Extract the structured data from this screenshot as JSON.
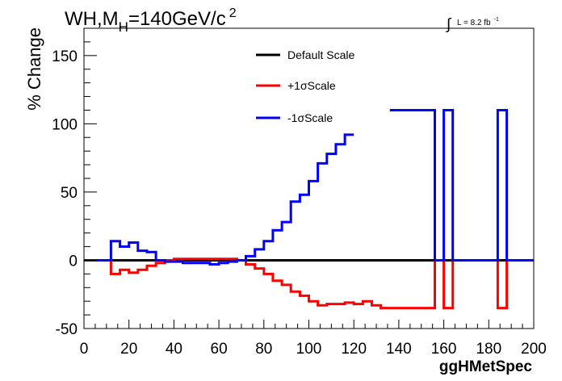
{
  "chart_data": {
    "type": "line",
    "title": "WH,M_H=140GeV/c^2",
    "title_parts": {
      "main": "WH,M",
      "sub": "H",
      "rest": "=140GeV/c",
      "sup": "2"
    },
    "lumi_label": {
      "symbol": "∫",
      "text": "L = 8.2 fb",
      "sup": "-1"
    },
    "xlabel": "ggHMetSpec",
    "ylabel": "% Change",
    "xlim": [
      0,
      200
    ],
    "ylim": [
      -50,
      170
    ],
    "x_ticks": [
      0,
      20,
      40,
      60,
      80,
      100,
      120,
      140,
      160,
      180,
      200
    ],
    "y_ticks": [
      -50,
      0,
      50,
      100,
      150
    ],
    "grid": false,
    "legend_position": "top-center",
    "step_edges": [
      0,
      4,
      8,
      12,
      16,
      20,
      24,
      28,
      32,
      36,
      40,
      44,
      48,
      52,
      56,
      60,
      64,
      68,
      72,
      76,
      80,
      84,
      88,
      92,
      96,
      100,
      104,
      108,
      112,
      116,
      120,
      124,
      128,
      132,
      136,
      140,
      144,
      148,
      152,
      156,
      160,
      164,
      168,
      172,
      176,
      180,
      184,
      188,
      192,
      196,
      200
    ],
    "series": [
      {
        "name": "Default Scale",
        "color": "#000000",
        "values": [
          0,
          0,
          0,
          0,
          0,
          0,
          0,
          0,
          0,
          0,
          0,
          0,
          0,
          0,
          0,
          0,
          0,
          0,
          0,
          0,
          0,
          0,
          0,
          0,
          0,
          0,
          0,
          0,
          0,
          0,
          0,
          0,
          0,
          0,
          0,
          0,
          0,
          0,
          0,
          0,
          0,
          0,
          0,
          0,
          0,
          0,
          0,
          0,
          0,
          0
        ]
      },
      {
        "name": "+1σScale",
        "color": "#ff0000",
        "values": [
          0,
          0,
          0,
          -10,
          -7,
          -9,
          -7,
          -4,
          -2,
          0,
          1,
          1,
          1,
          1,
          1,
          1,
          1,
          0,
          -3,
          -6,
          -10,
          -15,
          -18,
          -23,
          -26,
          -30,
          -33,
          -32,
          -32,
          -31,
          -32,
          -30,
          -33,
          -35,
          -35,
          -35,
          -35,
          -35,
          -35,
          0,
          -35,
          0,
          0,
          0,
          0,
          0,
          -35,
          0,
          0,
          0
        ]
      },
      {
        "name": "-1σScale",
        "color": "#0000ff",
        "values": [
          0,
          0,
          0,
          14,
          10,
          13,
          7,
          6,
          0,
          -1,
          -1,
          -2,
          -2,
          -2,
          -3,
          -2,
          -1,
          0,
          3,
          8,
          14,
          22,
          28,
          43,
          48,
          58,
          71,
          78,
          85,
          92,
          null,
          null,
          null,
          null,
          110,
          110,
          110,
          110,
          110,
          0,
          110,
          0,
          0,
          0,
          0,
          0,
          110,
          0,
          0,
          0
        ]
      }
    ]
  }
}
